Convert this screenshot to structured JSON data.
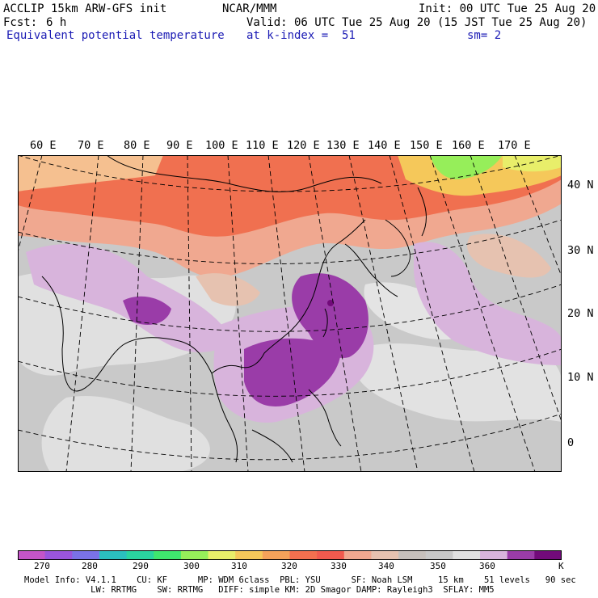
{
  "header": {
    "model": "ACCLIP 15km ARW-GFS init",
    "org": "NCAR/MMM",
    "init": "Init: 00 UTC Tue 25 Aug 20",
    "fcst_label": "Fcst:",
    "fcst_value": "6 h",
    "valid": "Valid: 06 UTC Tue 25 Aug 20 (15 JST Tue 25 Aug 20)",
    "field": "Equivalent potential temperature",
    "level": "at k-index =  51",
    "smooth": "sm= 2"
  },
  "map": {
    "lon_labels": [
      "60 E",
      "70 E",
      "80 E",
      "90 E",
      "100 E",
      "110 E",
      "120 E",
      "130 E",
      "140 E",
      "150 E",
      "160 E",
      "170 E"
    ],
    "lat_labels": [
      "40 N",
      "30 N",
      "20 N",
      "10 N",
      "0"
    ]
  },
  "colorbar": {
    "unit": "K",
    "labels": [
      "270",
      "280",
      "290",
      "300",
      "310",
      "320",
      "330",
      "340",
      "350",
      "360"
    ],
    "colors": [
      "#c455c8",
      "#9a55dc",
      "#7a72e6",
      "#2bbfbf",
      "#2ad4a0",
      "#3fe66e",
      "#96ee5a",
      "#e8ee6a",
      "#f5c85a",
      "#f4a25a",
      "#f2704f",
      "#f05a4e",
      "#f0a890",
      "#e6c2b0",
      "#c6c0bc",
      "#c8c8c8",
      "#e0e0e0",
      "#d8b4dc",
      "#9a3ca8",
      "#720a7a"
    ]
  },
  "footer": {
    "line1": "Model Info: V4.1.1    CU: KF      MP: WDM 6class  PBL: YSU      SF: Noah LSM     15 km    51 levels   90 sec",
    "line2": "             LW: RRTMG    SW: RRTMG   DIFF: simple KM: 2D Smagor DAMP: Rayleigh3  SFLAY: MM5"
  }
}
